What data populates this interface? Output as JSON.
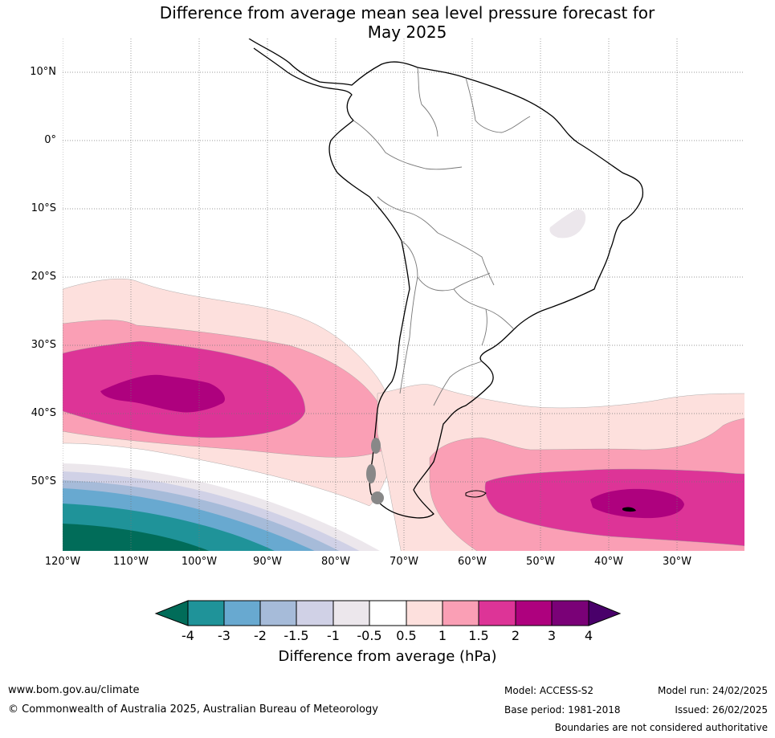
{
  "title_line1": "Difference from average mean sea level pressure forecast for",
  "title_line2": "May 2025",
  "lat_labels": [
    "10°N",
    "0°",
    "10°S",
    "20°S",
    "30°S",
    "40°S",
    "50°S"
  ],
  "lon_labels": [
    "120°W",
    "110°W",
    "100°W",
    "90°W",
    "80°W",
    "70°W",
    "60°W",
    "50°W",
    "40°W",
    "30°W"
  ],
  "colorbar": {
    "title": "Difference from average (hPa)",
    "ticks": [
      "-4",
      "-3",
      "-2",
      "-1.5",
      "-1",
      "-0.5",
      "0.5",
      "1",
      "1.5",
      "2",
      "3",
      "4"
    ],
    "colors": [
      "#1f9399",
      "#68a9d0",
      "#a6bbd9",
      "#d0d1e6",
      "#ece7ec",
      "#ffffff",
      "#fde0dd",
      "#fa9fb5",
      "#dd3497",
      "#ae017e",
      "#7a0177"
    ],
    "low_extend_color": "#016c59",
    "high_extend_color": "#49006a"
  },
  "footer": {
    "website": "www.bom.gov.au/climate",
    "copyright": "© Commonwealth of Australia 2025, Australian Bureau of Meteorology",
    "model": "Model: ACCESS-S2",
    "base_period": "Base period: 1981-2018",
    "model_run": "Model run: 24/02/2025",
    "issued": "Issued: 26/02/2025",
    "disclaimer": "Boundaries are not considered authoritative"
  }
}
